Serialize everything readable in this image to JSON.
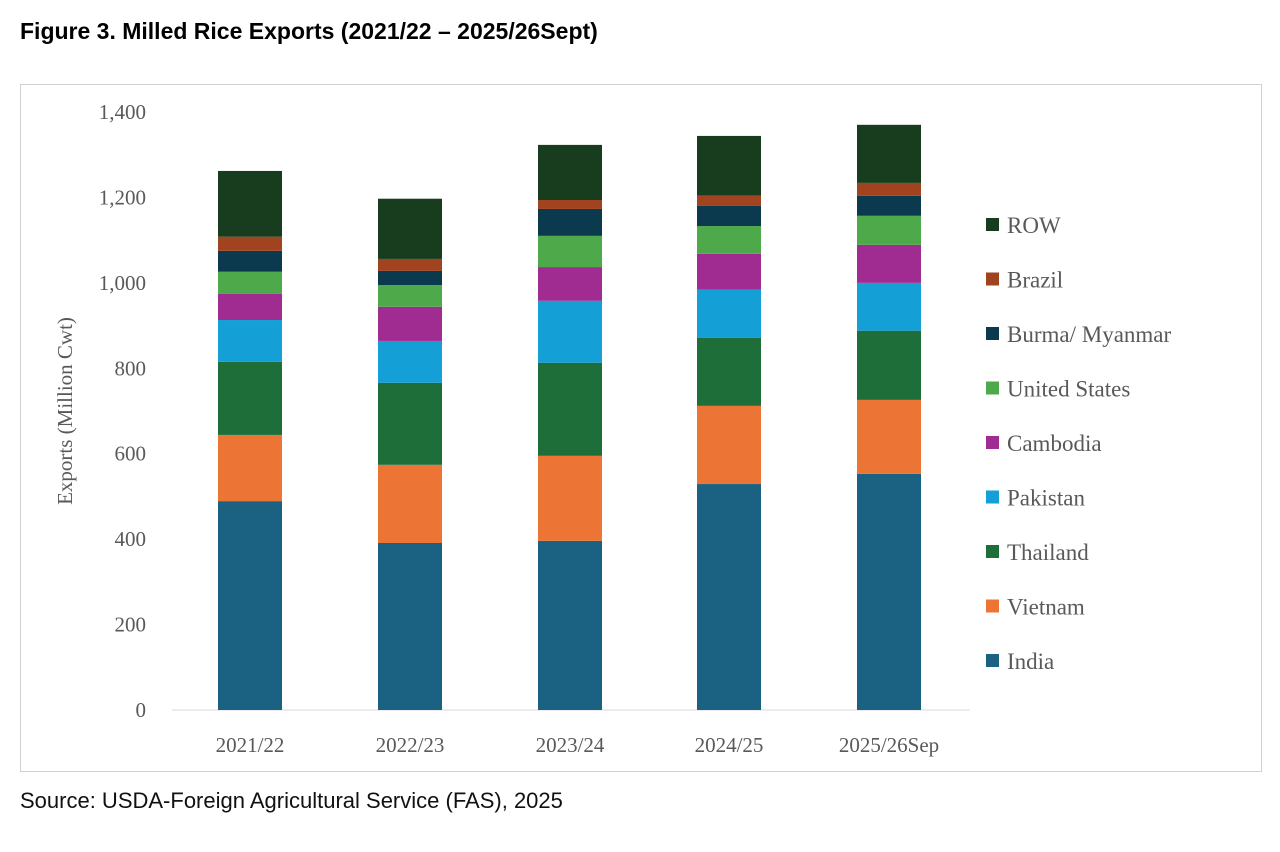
{
  "title": "Figure 3. Milled Rice Exports (2021/22 – 2025/26Sept)",
  "source": "Source: USDA-Foreign Agricultural Service (FAS), 2025",
  "chart_data": {
    "type": "bar",
    "stacked": true,
    "title": "Figure 3. Milled Rice Exports (2021/22 – 2025/26Sept)",
    "xlabel": "",
    "ylabel": "Exports (Million Cwt)",
    "ylim": [
      0,
      1400
    ],
    "yticks": [
      "0",
      "200",
      "400",
      "600",
      "800",
      "1,000",
      "1,200",
      "1,400"
    ],
    "grid": false,
    "legend_position": "right",
    "categories": [
      "2021/22",
      "2022/23",
      "2023/24",
      "2024/25",
      "2025/26Sep"
    ],
    "series": [
      {
        "name": "India",
        "color": "#1a6182",
        "values": [
          489,
          391,
          396,
          529,
          553
        ]
      },
      {
        "name": "Vietnam",
        "color": "#ec7434",
        "values": [
          155,
          183,
          199,
          183,
          173
        ]
      },
      {
        "name": "Thailand",
        "color": "#1e6e3a",
        "values": [
          171,
          192,
          218,
          159,
          162
        ]
      },
      {
        "name": "Pakistan",
        "color": "#149fd6",
        "values": [
          98,
          98,
          145,
          113,
          112
        ]
      },
      {
        "name": "Cambodia",
        "color": "#a02c92",
        "values": [
          61,
          80,
          79,
          84,
          89
        ]
      },
      {
        "name": "United States",
        "color": "#4ea94a",
        "values": [
          52,
          51,
          73,
          65,
          68
        ]
      },
      {
        "name": "Burma/ Myanmar",
        "color": "#0b3a4e",
        "values": [
          49,
          33,
          63,
          47,
          47
        ]
      },
      {
        "name": "Brazil",
        "color": "#a24320",
        "values": [
          33,
          28,
          21,
          24,
          30
        ]
      },
      {
        "name": "ROW",
        "color": "#183d1e",
        "values": [
          154,
          141,
          129,
          140,
          136
        ]
      }
    ]
  }
}
